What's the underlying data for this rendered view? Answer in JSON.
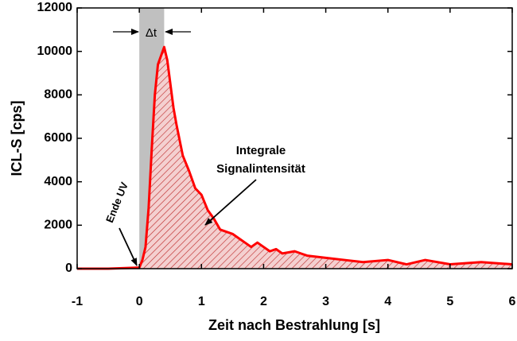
{
  "chart_data": {
    "type": "line",
    "xlabel": "Zeit nach Bestrahlung [s]",
    "ylabel": "ICL-S [cps]",
    "x": [
      -1,
      -0.5,
      0,
      0.05,
      0.1,
      0.15,
      0.2,
      0.25,
      0.3,
      0.35,
      0.4,
      0.45,
      0.5,
      0.55,
      0.6,
      0.7,
      0.8,
      0.9,
      1.0,
      1.1,
      1.2,
      1.3,
      1.4,
      1.5,
      1.6,
      1.7,
      1.8,
      1.9,
      2.0,
      2.1,
      2.2,
      2.3,
      2.5,
      2.7,
      3.0,
      3.3,
      3.6,
      4.0,
      4.3,
      4.6,
      5.0,
      5.5,
      6.0
    ],
    "values": [
      0,
      0,
      50,
      400,
      1000,
      2800,
      5500,
      8000,
      9400,
      9800,
      10200,
      9600,
      8500,
      7400,
      6600,
      5200,
      4500,
      3700,
      3400,
      2700,
      2300,
      1800,
      1700,
      1600,
      1400,
      1200,
      1000,
      1200,
      1000,
      800,
      900,
      700,
      800,
      600,
      500,
      400,
      300,
      400,
      200,
      400,
      200,
      300,
      200
    ],
    "color": "#ff0000",
    "band": [
      0,
      0.4
    ],
    "band_color": "#c0c0c0",
    "xlim": [
      -1,
      6
    ],
    "xticks": [
      -1,
      0,
      1,
      2,
      3,
      4,
      5,
      6
    ],
    "ylim": [
      0,
      12000
    ],
    "yticks": [
      0,
      2000,
      4000,
      6000,
      8000,
      10000,
      12000
    ],
    "annotations": {
      "delta_t": "Δt",
      "end_uv": "Ende UV",
      "integral": [
        "Integrale",
        "Signalintensität"
      ]
    }
  }
}
